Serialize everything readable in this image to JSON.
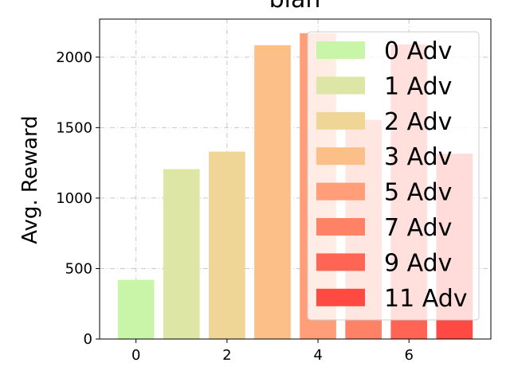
{
  "chart_data": {
    "type": "bar",
    "title": "blah",
    "xlabel": "",
    "ylabel": "Avg. Reward",
    "xlim": [
      -0.8,
      7.8
    ],
    "ylim": [
      0,
      2270
    ],
    "x": [
      0,
      1,
      2,
      3,
      4,
      5,
      6,
      7
    ],
    "values": [
      420,
      1205,
      1330,
      2085,
      2170,
      1555,
      2090,
      1315
    ],
    "colors": [
      "#c8f5a8",
      "#dde6a4",
      "#efd696",
      "#fcbf88",
      "#ff9e78",
      "#ff8166",
      "#ff6454",
      "#ff4a44"
    ],
    "xticks": [
      0,
      2,
      4,
      6
    ],
    "xtick_labels": [
      "0",
      "2",
      "4",
      "6"
    ],
    "yticks": [
      0,
      500,
      1000,
      1500,
      2000
    ],
    "ytick_labels": [
      "0",
      "500",
      "1000",
      "1500",
      "2000"
    ],
    "grid": true,
    "legend": {
      "placement": "upper-right",
      "entries": [
        "0 Adv",
        "1 Adv",
        "2 Adv",
        "3 Adv",
        "5 Adv",
        "7 Adv",
        "9 Adv",
        "11 Adv"
      ]
    }
  }
}
